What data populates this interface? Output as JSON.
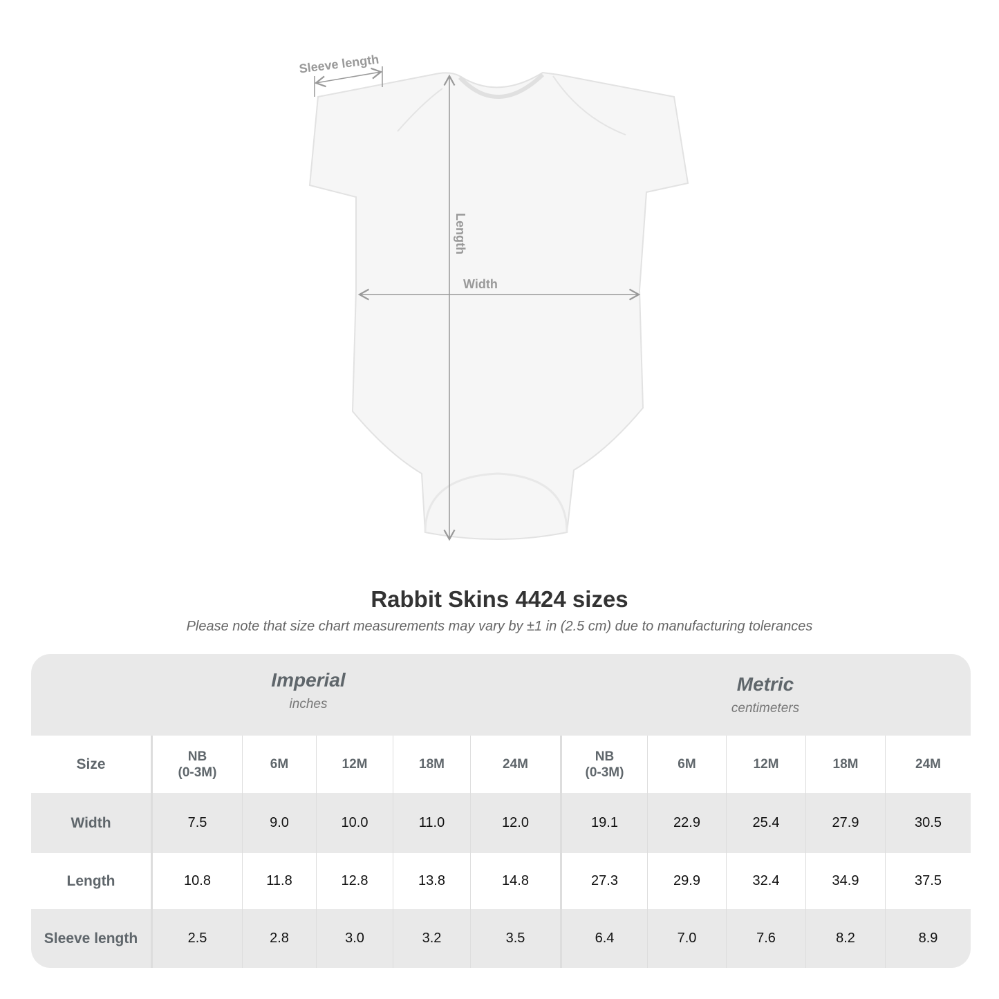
{
  "diagram": {
    "sleeve_label": "Sleeve length",
    "length_label": "Length",
    "width_label": "Width"
  },
  "title": "Rabbit Skins 4424 sizes",
  "note": "Please note that size chart measurements may vary by ±1 in (2.5 cm) due to manufacturing tolerances",
  "table": {
    "groups": [
      {
        "name": "Imperial",
        "unit": "inches"
      },
      {
        "name": "Metric",
        "unit": "centimeters"
      }
    ],
    "size_label": "Size",
    "sizes": [
      "NB\n(0-3M)",
      "6M",
      "12M",
      "18M",
      "24M",
      "NB\n(0-3M)",
      "6M",
      "12M",
      "18M",
      "24M"
    ],
    "rows": [
      {
        "label": "Width",
        "values": [
          "7.5",
          "9.0",
          "10.0",
          "11.0",
          "12.0",
          "19.1",
          "22.9",
          "25.4",
          "27.9",
          "30.5"
        ]
      },
      {
        "label": "Length",
        "values": [
          "10.8",
          "11.8",
          "12.8",
          "13.8",
          "14.8",
          "27.3",
          "29.9",
          "32.4",
          "34.9",
          "37.5"
        ]
      },
      {
        "label": "Sleeve length",
        "values": [
          "2.5",
          "2.8",
          "3.0",
          "3.2",
          "3.5",
          "6.4",
          "7.0",
          "7.6",
          "8.2",
          "8.9"
        ]
      }
    ]
  },
  "colors": {
    "header_bg": "#e9e9e9",
    "label_text": "#5f666b",
    "arrow": "#999999"
  }
}
